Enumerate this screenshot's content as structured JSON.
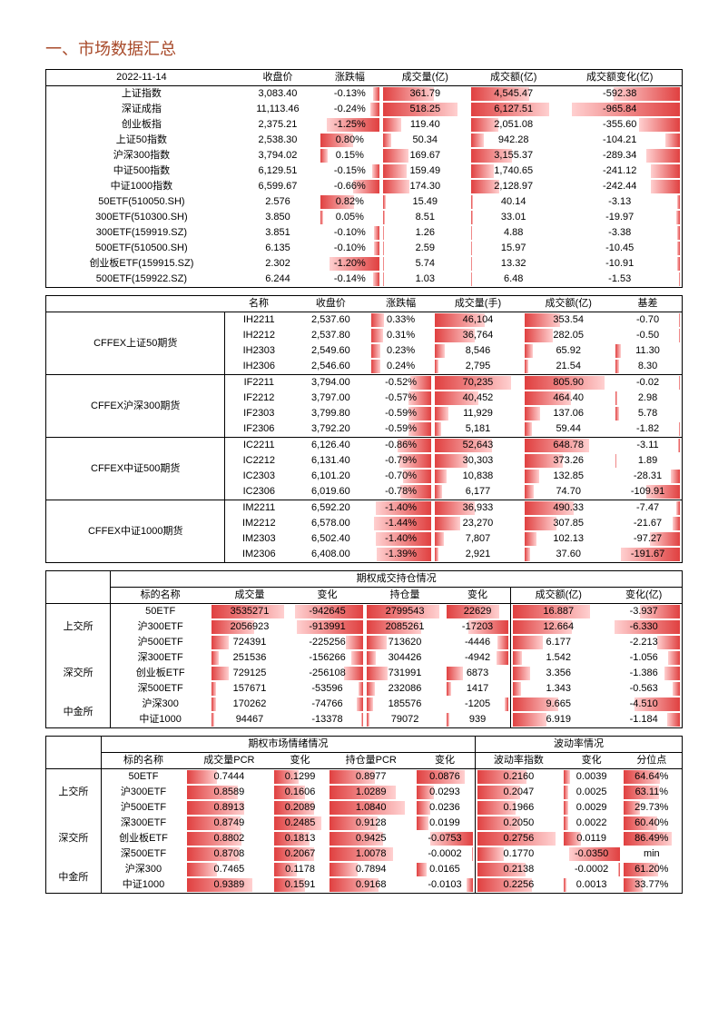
{
  "page_title": "一、市场数据汇总",
  "date": "2022-11-14",
  "color_deep": "#e04040",
  "color_light": "#ffd0d0",
  "section1": {
    "headers": [
      "收盘价",
      "涨跌幅",
      "成交量(亿)",
      "成交额(亿)",
      "成交额变化(亿)"
    ],
    "rows": [
      {
        "n": "上证指数",
        "c": "3,083.40",
        "pc": "-0.13%",
        "pcw": 10,
        "v": "361.79",
        "vw": 60,
        "a": "4,545.47",
        "aw": 68,
        "ch": "-592.38",
        "chw": 55
      },
      {
        "n": "深证成指",
        "c": "11,113.46",
        "pc": "-0.24%",
        "pcw": 15,
        "v": "518.25",
        "vw": 88,
        "a": "6,127.51",
        "aw": 92,
        "ch": "-965.84",
        "chw": 90
      },
      {
        "n": "创业板指",
        "c": "2,375.21",
        "pc": "-1.25%",
        "pcw": 90,
        "v": "119.40",
        "vw": 22,
        "a": "2,051.08",
        "aw": 32,
        "ch": "-355.60",
        "chw": 34
      },
      {
        "n": "上证50指数",
        "c": "2,538.30",
        "pc": "0.80%",
        "pcw": 55,
        "v": "50.34",
        "vw": 10,
        "a": "942.28",
        "aw": 15,
        "ch": "-104.21",
        "chw": 12
      },
      {
        "n": "沪深300指数",
        "c": "3,794.02",
        "pc": "0.15%",
        "pcw": 12,
        "v": "169.67",
        "vw": 30,
        "a": "3,155.37",
        "aw": 48,
        "ch": "-289.34",
        "chw": 28
      },
      {
        "n": "中证500指数",
        "c": "6,129.51",
        "pc": "-0.15%",
        "pcw": 12,
        "v": "159.49",
        "vw": 28,
        "a": "1,740.65",
        "aw": 27,
        "ch": "-241.12",
        "chw": 24
      },
      {
        "n": "中证1000指数",
        "c": "6,599.67",
        "pc": "-0.66%",
        "pcw": 45,
        "v": "174.30",
        "vw": 31,
        "a": "2,128.97",
        "aw": 33,
        "ch": "-242.44",
        "chw": 24
      },
      {
        "n": "50ETF(510050.SH)",
        "c": "2.576",
        "pc": "0.82%",
        "pcw": 57,
        "v": "15.49",
        "vw": 4,
        "a": "40.14",
        "aw": 2,
        "ch": "-3.13",
        "chw": 2
      },
      {
        "n": "300ETF(510300.SH)",
        "c": "3.850",
        "pc": "0.05%",
        "pcw": 5,
        "v": "8.51",
        "vw": 3,
        "a": "33.01",
        "aw": 2,
        "ch": "-19.97",
        "chw": 3
      },
      {
        "n": "300ETF(159919.SZ)",
        "c": "3.851",
        "pc": "-0.10%",
        "pcw": 8,
        "v": "1.26",
        "vw": 1,
        "a": "4.88",
        "aw": 1,
        "ch": "-3.38",
        "chw": 2
      },
      {
        "n": "500ETF(510500.SH)",
        "c": "6.135",
        "pc": "-0.10%",
        "pcw": 8,
        "v": "2.59",
        "vw": 1,
        "a": "15.97",
        "aw": 1,
        "ch": "-10.45",
        "chw": 2
      },
      {
        "n": "创业板ETF(159915.SZ)",
        "c": "2.302",
        "pc": "-1.20%",
        "pcw": 85,
        "v": "5.74",
        "vw": 2,
        "a": "13.32",
        "aw": 1,
        "ch": "-10.91",
        "chw": 2
      },
      {
        "n": "500ETF(159922.SZ)",
        "c": "6.244",
        "pc": "-0.14%",
        "pcw": 10,
        "v": "1.03",
        "vw": 1,
        "a": "6.48",
        "aw": 1,
        "ch": "-1.53",
        "chw": 1
      }
    ]
  },
  "section2": {
    "headers": [
      "名称",
      "收盘价",
      "涨跌幅",
      "成交量(手)",
      "成交额(亿)",
      "基差"
    ],
    "groups": [
      {
        "g": "CFFEX上证50期货",
        "rows": [
          {
            "n": "IH2211",
            "c": "2,537.60",
            "pc": "0.33%",
            "pcw": 22,
            "v": "46,104",
            "vw": 58,
            "a": "353.54",
            "aw": 40,
            "b": "-0.70",
            "bw": 2
          },
          {
            "n": "IH2212",
            "c": "2,537.80",
            "pc": "0.31%",
            "pcw": 20,
            "v": "36,764",
            "vw": 46,
            "a": "282.05",
            "aw": 32,
            "b": "-0.50",
            "bw": 2
          },
          {
            "n": "IH2303",
            "c": "2,549.60",
            "pc": "0.23%",
            "pcw": 16,
            "v": "8,546",
            "vw": 12,
            "a": "65.92",
            "aw": 9,
            "b": "11.30",
            "bw": 8
          },
          {
            "n": "IH2306",
            "c": "2,546.60",
            "pc": "0.24%",
            "pcw": 16,
            "v": "2,795",
            "vw": 5,
            "a": "21.54",
            "aw": 4,
            "b": "8.30",
            "bw": 6
          }
        ]
      },
      {
        "g": "CFFEX沪深300期货",
        "rows": [
          {
            "n": "IF2211",
            "c": "3,794.00",
            "pc": "-0.52%",
            "pcw": 34,
            "v": "70,235",
            "vw": 88,
            "a": "805.90",
            "aw": 92,
            "b": "-0.02",
            "bw": 1
          },
          {
            "n": "IF2212",
            "c": "3,797.00",
            "pc": "-0.57%",
            "pcw": 37,
            "v": "40,452",
            "vw": 51,
            "a": "464.40",
            "aw": 53,
            "b": "2.98",
            "bw": 3
          },
          {
            "n": "IF2303",
            "c": "3,799.80",
            "pc": "-0.59%",
            "pcw": 38,
            "v": "11,929",
            "vw": 16,
            "a": "137.06",
            "aw": 17,
            "b": "5.78",
            "bw": 5
          },
          {
            "n": "IF2306",
            "c": "3,792.20",
            "pc": "-0.59%",
            "pcw": 38,
            "v": "5,181",
            "vw": 8,
            "a": "59.44",
            "aw": 8,
            "b": "-1.82",
            "bw": 2
          }
        ]
      },
      {
        "g": "CFFEX中证500期货",
        "rows": [
          {
            "n": "IC2211",
            "c": "6,126.40",
            "pc": "-0.86%",
            "pcw": 56,
            "v": "52,643",
            "vw": 66,
            "a": "648.78",
            "aw": 74,
            "b": "-3.11",
            "bw": 3
          },
          {
            "n": "IC2212",
            "c": "6,131.40",
            "pc": "-0.79%",
            "pcw": 52,
            "v": "30,303",
            "vw": 38,
            "a": "373.26",
            "aw": 43,
            "b": "1.89",
            "bw": 2
          },
          {
            "n": "IC2303",
            "c": "6,101.20",
            "pc": "-0.70%",
            "pcw": 46,
            "v": "10,838",
            "vw": 14,
            "a": "132.85",
            "aw": 16,
            "b": "-28.31",
            "bw": 14
          },
          {
            "n": "IC2306",
            "c": "6,019.60",
            "pc": "-0.78%",
            "pcw": 51,
            "v": "6,177",
            "vw": 9,
            "a": "74.70",
            "aw": 10,
            "b": "-109.91",
            "bw": 52
          }
        ]
      },
      {
        "g": "CFFEX中证1000期货",
        "rows": [
          {
            "n": "IM2211",
            "c": "6,592.20",
            "pc": "-1.40%",
            "pcw": 92,
            "v": "36,933",
            "vw": 46,
            "a": "490.33",
            "aw": 56,
            "b": "-7.47",
            "bw": 5
          },
          {
            "n": "IM2212",
            "c": "6,578.00",
            "pc": "-1.44%",
            "pcw": 95,
            "v": "23,270",
            "vw": 30,
            "a": "307.85",
            "aw": 36,
            "b": "-21.67",
            "bw": 12
          },
          {
            "n": "IM2303",
            "c": "6,502.40",
            "pc": "-1.40%",
            "pcw": 92,
            "v": "7,807",
            "vw": 11,
            "a": "102.13",
            "aw": 13,
            "b": "-97.27",
            "bw": 46
          },
          {
            "n": "IM2306",
            "c": "6,408.00",
            "pc": "-1.39%",
            "pcw": 91,
            "v": "2,921",
            "vw": 5,
            "a": "37.60",
            "aw": 6,
            "b": "-191.67",
            "bw": 92
          }
        ]
      }
    ]
  },
  "section3": {
    "title": "期权成交持仓情况",
    "headers": [
      "标的名称",
      "成交量",
      "变化",
      "持仓量",
      "变化",
      "成交额(亿)",
      "变化(亿)"
    ],
    "groups": [
      {
        "g": "上交所",
        "rows": [
          {
            "n": "50ETF",
            "v": "3535271",
            "vw": 95,
            "vc": "-942645",
            "vcw": 95,
            "oi": "2799543",
            "oiw": 95,
            "oic": "22629",
            "oicw": 85,
            "a": "16.887",
            "aw": 85,
            "ac": "-3.937",
            "acw": 55
          },
          {
            "n": "沪300ETF",
            "v": "2056923",
            "vw": 56,
            "vc": "-913991",
            "vcw": 92,
            "oi": "2085261",
            "oiw": 72,
            "oic": "-17203",
            "oicw": 65,
            "a": "12.664",
            "aw": 65,
            "ac": "-6.330",
            "acw": 90
          },
          {
            "n": "沪500ETF",
            "v": "724391",
            "vw": 22,
            "vc": "-225256",
            "vcw": 24,
            "oi": "713620",
            "oiw": 26,
            "oic": "-4446",
            "oicw": 18,
            "a": "6.177",
            "aw": 33,
            "ac": "-2.213",
            "acw": 32
          }
        ]
      },
      {
        "g": "深交所",
        "rows": [
          {
            "n": "深300ETF",
            "v": "251536",
            "vw": 9,
            "vc": "-156266",
            "vcw": 17,
            "oi": "304426",
            "oiw": 12,
            "oic": "-4942",
            "oicw": 20,
            "a": "1.542",
            "aw": 10,
            "ac": "-1.056",
            "acw": 16
          },
          {
            "n": "创业板ETF",
            "v": "729125",
            "vw": 22,
            "vc": "-256108",
            "vcw": 27,
            "oi": "731991",
            "oiw": 27,
            "oic": "6873",
            "oicw": 27,
            "a": "3.356",
            "aw": 19,
            "ac": "-1.386",
            "acw": 21
          },
          {
            "n": "深500ETF",
            "v": "157671",
            "vw": 6,
            "vc": "-53596",
            "vcw": 7,
            "oi": "232086",
            "oiw": 10,
            "oic": "1417",
            "oicw": 7,
            "a": "1.343",
            "aw": 9,
            "ac": "-0.563",
            "acw": 10
          }
        ]
      },
      {
        "g": "中金所",
        "rows": [
          {
            "n": "沪深300",
            "v": "170262",
            "vw": 6,
            "vc": "-74766",
            "vcw": 9,
            "oi": "185576",
            "oiw": 8,
            "oic": "-1205",
            "oicw": 6,
            "a": "9.665",
            "aw": 50,
            "ac": "-4.510",
            "acw": 63
          },
          {
            "n": "中证1000",
            "v": "94467",
            "vw": 4,
            "vc": "-13378",
            "vcw": 3,
            "oi": "79072",
            "oiw": 4,
            "oic": "939",
            "oicw": 5,
            "a": "6.919",
            "aw": 37,
            "ac": "-1.184",
            "acw": 18
          }
        ]
      }
    ]
  },
  "section4": {
    "left_title": "期权市场情绪情况",
    "right_title": "波动率情况",
    "headers_l": [
      "标的名称",
      "成交量PCR",
      "变化",
      "持仓量PCR",
      "变化"
    ],
    "headers_r": [
      "波动率指数",
      "变化",
      "分位点"
    ],
    "groups": [
      {
        "g": "上交所",
        "rows": [
          {
            "n": "50ETF",
            "vp": "0.7444",
            "vpw": 35,
            "vpc": "0.1299",
            "vpcw": 48,
            "op": "0.8977",
            "opw": 55,
            "opc": "0.0876",
            "opcw": 85,
            "iv": "0.2160",
            "ivw": 60,
            "ivc": "0.0039",
            "ivcw": 12,
            "pt": "64.64%",
            "ptw": 64
          },
          {
            "n": "沪300ETF",
            "vp": "0.8589",
            "vpw": 60,
            "vpc": "0.1606",
            "vpcw": 60,
            "op": "1.0289",
            "opw": 80,
            "opc": "0.0293",
            "opcw": 30,
            "iv": "0.2047",
            "ivw": 52,
            "ivc": "0.0025",
            "ivcw": 8,
            "pt": "63.11%",
            "ptw": 63
          },
          {
            "n": "沪500ETF",
            "vp": "0.8913",
            "vpw": 68,
            "vpc": "0.2089",
            "vpcw": 78,
            "op": "1.0840",
            "opw": 90,
            "opc": "0.0236",
            "opcw": 25,
            "iv": "0.1966",
            "ivw": 46,
            "ivc": "0.0029",
            "ivcw": 9,
            "pt": "29.73%",
            "ptw": 30
          }
        ]
      },
      {
        "g": "深交所",
        "rows": [
          {
            "n": "深300ETF",
            "vp": "0.8749",
            "vpw": 64,
            "vpc": "0.2485",
            "vpcw": 92,
            "op": "0.9128",
            "opw": 58,
            "opc": "0.0199",
            "opcw": 21,
            "iv": "0.2050",
            "ivw": 52,
            "ivc": "0.0022",
            "ivcw": 8,
            "pt": "60.40%",
            "ptw": 60
          },
          {
            "n": "创业板ETF",
            "vp": "0.8802",
            "vpw": 65,
            "vpc": "0.1813",
            "vpcw": 68,
            "op": "0.9425",
            "opw": 64,
            "opc": "-0.0753",
            "opcw": 75,
            "iv": "0.2756",
            "ivw": 95,
            "ivc": "0.0119",
            "ivcw": 32,
            "pt": "86.49%",
            "ptw": 86
          },
          {
            "n": "深500ETF",
            "vp": "0.8708",
            "vpw": 63,
            "vpc": "0.2067",
            "vpcw": 77,
            "op": "1.0078",
            "opw": 76,
            "opc": "-0.0002",
            "opcw": 2,
            "iv": "0.1770",
            "ivw": 32,
            "ivc": "-0.0350",
            "ivcw": 90,
            "pt": "min",
            "ptw": 0
          }
        ]
      },
      {
        "g": "中金所",
        "rows": [
          {
            "n": "沪深300",
            "vp": "0.7465",
            "vpw": 36,
            "vpc": "0.1178",
            "vpcw": 44,
            "op": "0.7894",
            "opw": 34,
            "opc": "0.0165",
            "opcw": 18,
            "iv": "0.2138",
            "ivw": 58,
            "ivc": "-0.0002",
            "ivcw": 2,
            "pt": "61.20%",
            "ptw": 61
          },
          {
            "n": "中证1000",
            "vp": "0.9389",
            "vpw": 78,
            "vpc": "0.1591",
            "vpcw": 60,
            "op": "0.9168",
            "opw": 59,
            "opc": "-0.0103",
            "opcw": 12,
            "iv": "0.2256",
            "ivw": 66,
            "ivc": "0.0013",
            "ivcw": 5,
            "pt": "33.77%",
            "ptw": 34
          }
        ]
      }
    ]
  }
}
